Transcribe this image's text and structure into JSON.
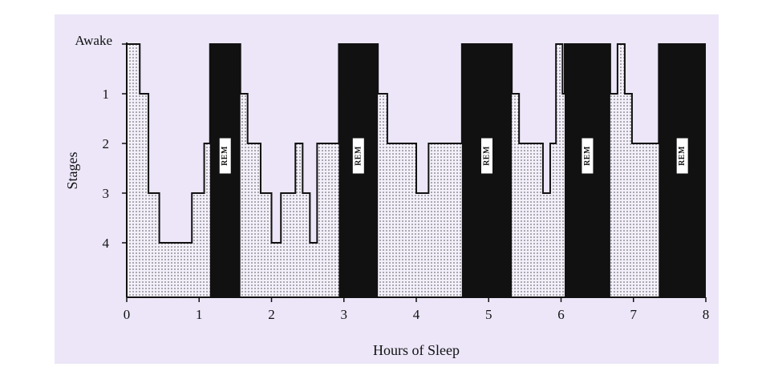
{
  "chart_data": {
    "type": "area",
    "title": "",
    "xlabel": "Hours of Sleep",
    "ylabel": "Stages",
    "xlim": [
      0,
      8
    ],
    "ylim": [
      0,
      5
    ],
    "x_ticks": [
      "0",
      "1",
      "2",
      "3",
      "4",
      "5",
      "6",
      "7",
      "8"
    ],
    "y_ticks": [
      {
        "value": 0,
        "label": "Awake"
      },
      {
        "value": 1,
        "label": "1"
      },
      {
        "value": 2,
        "label": "2"
      },
      {
        "value": 3,
        "label": "3"
      },
      {
        "value": 4,
        "label": "4"
      }
    ],
    "hypnogram": [
      {
        "x": 0.0,
        "stage": 0
      },
      {
        "x": 0.18,
        "stage": 1
      },
      {
        "x": 0.3,
        "stage": 3
      },
      {
        "x": 0.45,
        "stage": 4
      },
      {
        "x": 0.9,
        "stage": 3
      },
      {
        "x": 1.07,
        "stage": 2
      },
      {
        "x": 1.15,
        "stage": 0
      },
      {
        "x": 1.57,
        "stage": 1
      },
      {
        "x": 1.67,
        "stage": 2
      },
      {
        "x": 1.85,
        "stage": 3
      },
      {
        "x": 2.0,
        "stage": 4
      },
      {
        "x": 2.13,
        "stage": 3
      },
      {
        "x": 2.33,
        "stage": 2
      },
      {
        "x": 2.43,
        "stage": 3
      },
      {
        "x": 2.53,
        "stage": 4
      },
      {
        "x": 2.63,
        "stage": 2
      },
      {
        "x": 2.93,
        "stage": 0
      },
      {
        "x": 3.47,
        "stage": 1
      },
      {
        "x": 3.6,
        "stage": 2
      },
      {
        "x": 4.0,
        "stage": 3
      },
      {
        "x": 4.17,
        "stage": 2
      },
      {
        "x": 4.63,
        "stage": 0
      },
      {
        "x": 5.32,
        "stage": 1
      },
      {
        "x": 5.42,
        "stage": 2
      },
      {
        "x": 5.75,
        "stage": 3
      },
      {
        "x": 5.85,
        "stage": 2
      },
      {
        "x": 5.93,
        "stage": 0
      },
      {
        "x": 6.02,
        "stage": 1
      },
      {
        "x": 6.05,
        "stage": 0
      },
      {
        "x": 6.68,
        "stage": 1
      },
      {
        "x": 6.78,
        "stage": 0
      },
      {
        "x": 6.88,
        "stage": 1
      },
      {
        "x": 6.98,
        "stage": 2
      },
      {
        "x": 7.35,
        "stage": 0
      },
      {
        "x": 8.0,
        "stage": 0
      }
    ],
    "rem_periods": [
      {
        "start": 1.15,
        "end": 1.57,
        "label": "REM"
      },
      {
        "start": 2.93,
        "end": 3.47,
        "label": "REM"
      },
      {
        "start": 4.63,
        "end": 5.32,
        "label": "REM"
      },
      {
        "start": 6.05,
        "end": 6.68,
        "label": "REM"
      },
      {
        "start": 7.35,
        "end": 8.0,
        "label": "REM"
      }
    ],
    "grid": false,
    "colors": {
      "background": "#ece6f8",
      "rem_fill": "#111111",
      "stage_fill": "#f3eefb",
      "stage_dots": "#444444",
      "line": "#111111"
    }
  }
}
